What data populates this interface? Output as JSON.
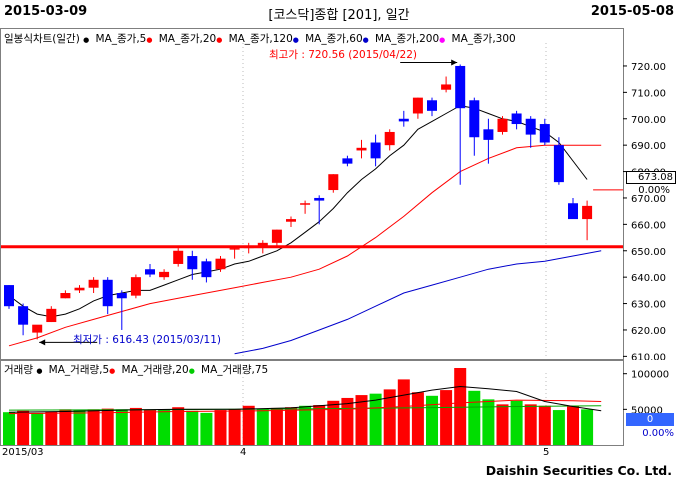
{
  "header": {
    "start_date": "2015-03-09",
    "title": "[코스닥]종합 [201], 일간",
    "end_date": "2015-05-08"
  },
  "price_panel": {
    "legend_title": "일봉식차트(일간)",
    "legend_items": [
      {
        "label": "MA_종가,5",
        "color": "#000000"
      },
      {
        "label": "MA_종가,20",
        "color": "#ff0000"
      },
      {
        "label": "MA_종가,120",
        "color": "#ff0000"
      },
      {
        "label": "MA_종가,60",
        "color": "#0000cc"
      },
      {
        "label": "MA_종가,200",
        "color": "#0000cc"
      },
      {
        "label": "MA_종가,300",
        "color": "#ff00ff"
      }
    ],
    "high_annotation": "최고가 : 720.56 (2015/04/22)",
    "low_annotation": "최저가 : 616.43 (2015/03/11)",
    "current_value": "673.08",
    "current_change": "0.00%"
  },
  "volume_panel": {
    "legend_title": "거래량",
    "legend_items": [
      {
        "label": "MA_거래량,5",
        "color": "#000000"
      },
      {
        "label": "MA_거래량,20",
        "color": "#ff0000"
      },
      {
        "label": "MA_거래량,75",
        "color": "#00cc00"
      }
    ],
    "current_value": "0",
    "current_change": "0.00%"
  },
  "footer": {
    "brand": "Daishin Securities Co. Ltd.",
    "x_labels": [
      "2015/03",
      "4",
      "5"
    ]
  },
  "chart_data": {
    "type": "candlestick",
    "y_ticks": [
      610,
      620,
      630,
      640,
      650,
      660,
      670,
      680,
      690,
      700,
      710,
      720
    ],
    "ylim": [
      609,
      734
    ],
    "horizontal_line": 651.5,
    "candles": [
      {
        "o": 637,
        "h": 637,
        "l": 628,
        "c": 629
      },
      {
        "o": 629,
        "h": 630,
        "l": 618,
        "c": 622
      },
      {
        "o": 619,
        "h": 621,
        "l": 616.43,
        "c": 622
      },
      {
        "o": 623,
        "h": 629,
        "l": 623,
        "c": 628
      },
      {
        "o": 632,
        "h": 635,
        "l": 632,
        "c": 634
      },
      {
        "o": 635,
        "h": 637,
        "l": 634,
        "c": 636
      },
      {
        "o": 636,
        "h": 640,
        "l": 634,
        "c": 639
      },
      {
        "o": 639,
        "h": 640,
        "l": 626,
        "c": 629
      },
      {
        "o": 634,
        "h": 635,
        "l": 620,
        "c": 632
      },
      {
        "o": 633,
        "h": 641,
        "l": 632,
        "c": 640
      },
      {
        "o": 643,
        "h": 645,
        "l": 640,
        "c": 641
      },
      {
        "o": 640,
        "h": 643,
        "l": 639,
        "c": 642
      },
      {
        "o": 645,
        "h": 651,
        "l": 644,
        "c": 650
      },
      {
        "o": 648,
        "h": 650,
        "l": 639,
        "c": 643
      },
      {
        "o": 646,
        "h": 647,
        "l": 638,
        "c": 640
      },
      {
        "o": 643,
        "h": 648,
        "l": 642,
        "c": 647
      },
      {
        "o": 651,
        "h": 652,
        "l": 647,
        "c": 651
      },
      {
        "o": 651,
        "h": 653,
        "l": 649,
        "c": 652
      },
      {
        "o": 652,
        "h": 654,
        "l": 649,
        "c": 653
      },
      {
        "o": 653,
        "h": 658,
        "l": 652,
        "c": 658
      },
      {
        "o": 661,
        "h": 663,
        "l": 659,
        "c": 662
      },
      {
        "o": 668,
        "h": 669,
        "l": 664,
        "c": 668
      },
      {
        "o": 670,
        "h": 671,
        "l": 660,
        "c": 669
      },
      {
        "o": 673,
        "h": 679,
        "l": 672,
        "c": 679
      },
      {
        "o": 685,
        "h": 686,
        "l": 682,
        "c": 683
      },
      {
        "o": 688,
        "h": 692,
        "l": 685,
        "c": 689
      },
      {
        "o": 691,
        "h": 694,
        "l": 682,
        "c": 685
      },
      {
        "o": 690,
        "h": 696,
        "l": 688,
        "c": 695
      },
      {
        "o": 700,
        "h": 703,
        "l": 697,
        "c": 699
      },
      {
        "o": 702,
        "h": 708,
        "l": 700,
        "c": 708
      },
      {
        "o": 707,
        "h": 708,
        "l": 701,
        "c": 703
      },
      {
        "o": 711,
        "h": 716,
        "l": 710,
        "c": 713
      },
      {
        "o": 720,
        "h": 720.56,
        "l": 675,
        "c": 704
      },
      {
        "o": 707,
        "h": 708,
        "l": 686,
        "c": 693
      },
      {
        "o": 696,
        "h": 700,
        "l": 683,
        "c": 692
      },
      {
        "o": 695,
        "h": 701,
        "l": 694,
        "c": 700
      },
      {
        "o": 702,
        "h": 703,
        "l": 696,
        "c": 698
      },
      {
        "o": 700,
        "h": 701,
        "l": 689,
        "c": 694
      },
      {
        "o": 698,
        "h": 700,
        "l": 690,
        "c": 691
      },
      {
        "o": 690,
        "h": 693,
        "l": 675,
        "c": 676
      },
      {
        "o": 668,
        "h": 670,
        "l": 663,
        "c": 662
      },
      {
        "o": 662,
        "h": 669,
        "l": 654,
        "c": 667
      }
    ],
    "ma_series": [
      {
        "label": "MA_종가,5",
        "color": "#000000",
        "values": [
          [
            0,
            633
          ],
          [
            1,
            629
          ],
          [
            2,
            626
          ],
          [
            3,
            625
          ],
          [
            4,
            626
          ],
          [
            5,
            628
          ],
          [
            6,
            631
          ],
          [
            7,
            633
          ],
          [
            8,
            634
          ],
          [
            9,
            635
          ],
          [
            10,
            635
          ],
          [
            11,
            637
          ],
          [
            12,
            639
          ],
          [
            13,
            641
          ],
          [
            14,
            642
          ],
          [
            15,
            643
          ],
          [
            16,
            645
          ],
          [
            17,
            646
          ],
          [
            18,
            648
          ],
          [
            19,
            650
          ],
          [
            20,
            653
          ],
          [
            21,
            657
          ],
          [
            22,
            661
          ],
          [
            23,
            666
          ],
          [
            24,
            672
          ],
          [
            25,
            677
          ],
          [
            26,
            681
          ],
          [
            27,
            686
          ],
          [
            28,
            690
          ],
          [
            29,
            696
          ],
          [
            30,
            699
          ],
          [
            31,
            702
          ],
          [
            32,
            705
          ],
          [
            33,
            704
          ],
          [
            34,
            702
          ],
          [
            35,
            700
          ],
          [
            36,
            699
          ],
          [
            37,
            697
          ],
          [
            38,
            695
          ],
          [
            39,
            691
          ],
          [
            40,
            684
          ],
          [
            41,
            677
          ]
        ]
      },
      {
        "label": "MA_종가,20",
        "color": "#ff0000",
        "values": [
          [
            0,
            614
          ],
          [
            2,
            617
          ],
          [
            4,
            621
          ],
          [
            6,
            624
          ],
          [
            8,
            627
          ],
          [
            10,
            630
          ],
          [
            12,
            632
          ],
          [
            14,
            634
          ],
          [
            16,
            636
          ],
          [
            18,
            638
          ],
          [
            20,
            640
          ],
          [
            22,
            643
          ],
          [
            24,
            648
          ],
          [
            26,
            655
          ],
          [
            28,
            663
          ],
          [
            30,
            672
          ],
          [
            32,
            680
          ],
          [
            34,
            685
          ],
          [
            36,
            689
          ],
          [
            38,
            690
          ],
          [
            40,
            690
          ],
          [
            42,
            690
          ]
        ]
      },
      {
        "label": "MA_종가,60",
        "color": "#0000cc",
        "values": [
          [
            16,
            611
          ],
          [
            18,
            613
          ],
          [
            20,
            616
          ],
          [
            22,
            620
          ],
          [
            24,
            624
          ],
          [
            26,
            629
          ],
          [
            28,
            634
          ],
          [
            30,
            637
          ],
          [
            32,
            640
          ],
          [
            34,
            643
          ],
          [
            36,
            645
          ],
          [
            38,
            646
          ],
          [
            40,
            648
          ],
          [
            42,
            650
          ]
        ]
      }
    ],
    "volume": {
      "ylim": [
        0,
        115000
      ],
      "y_ticks": [
        50000,
        100000
      ],
      "bars": [
        {
          "v": 46000,
          "up": false
        },
        {
          "v": 48000,
          "up": true
        },
        {
          "v": 45000,
          "up": false
        },
        {
          "v": 47000,
          "up": true
        },
        {
          "v": 50000,
          "up": true
        },
        {
          "v": 49000,
          "up": false
        },
        {
          "v": 50000,
          "up": true
        },
        {
          "v": 51000,
          "up": true
        },
        {
          "v": 50000,
          "up": false
        },
        {
          "v": 52000,
          "up": true
        },
        {
          "v": 49000,
          "up": true
        },
        {
          "v": 50000,
          "up": false
        },
        {
          "v": 53000,
          "up": true
        },
        {
          "v": 48000,
          "up": false
        },
        {
          "v": 45000,
          "up": false
        },
        {
          "v": 49000,
          "up": true
        },
        {
          "v": 50000,
          "up": true
        },
        {
          "v": 55000,
          "up": true
        },
        {
          "v": 51000,
          "up": false
        },
        {
          "v": 52000,
          "up": true
        },
        {
          "v": 53000,
          "up": true
        },
        {
          "v": 55000,
          "up": false
        },
        {
          "v": 56000,
          "up": true
        },
        {
          "v": 62000,
          "up": true
        },
        {
          "v": 66000,
          "up": true
        },
        {
          "v": 70000,
          "up": true
        },
        {
          "v": 72000,
          "up": false
        },
        {
          "v": 78000,
          "up": true
        },
        {
          "v": 92000,
          "up": true
        },
        {
          "v": 74000,
          "up": true
        },
        {
          "v": 69000,
          "up": false
        },
        {
          "v": 77000,
          "up": true
        },
        {
          "v": 108000,
          "up": true
        },
        {
          "v": 76000,
          "up": false
        },
        {
          "v": 64000,
          "up": false
        },
        {
          "v": 57000,
          "up": true
        },
        {
          "v": 62000,
          "up": false
        },
        {
          "v": 57000,
          "up": true
        },
        {
          "v": 55000,
          "up": true
        },
        {
          "v": 49000,
          "up": false
        },
        {
          "v": 55000,
          "up": true
        },
        {
          "v": 50000,
          "up": false
        }
      ],
      "ma5": [
        [
          0,
          46000
        ],
        [
          4,
          47000
        ],
        [
          8,
          49000
        ],
        [
          12,
          50000
        ],
        [
          16,
          50000
        ],
        [
          20,
          52000
        ],
        [
          24,
          58000
        ],
        [
          26,
          63000
        ],
        [
          28,
          70000
        ],
        [
          30,
          77000
        ],
        [
          32,
          82000
        ],
        [
          34,
          79000
        ],
        [
          36,
          75000
        ],
        [
          38,
          61000
        ],
        [
          40,
          54000
        ],
        [
          42,
          48000
        ]
      ],
      "ma20": [
        [
          0,
          44000
        ],
        [
          6,
          45000
        ],
        [
          12,
          47000
        ],
        [
          18,
          48000
        ],
        [
          24,
          50000
        ],
        [
          28,
          54000
        ],
        [
          32,
          59000
        ],
        [
          36,
          63000
        ],
        [
          40,
          62000
        ],
        [
          42,
          61000
        ]
      ],
      "ma75": [
        [
          0,
          49000
        ],
        [
          10,
          49500
        ],
        [
          20,
          50500
        ],
        [
          30,
          52500
        ],
        [
          36,
          54000
        ],
        [
          42,
          55000
        ]
      ]
    }
  }
}
